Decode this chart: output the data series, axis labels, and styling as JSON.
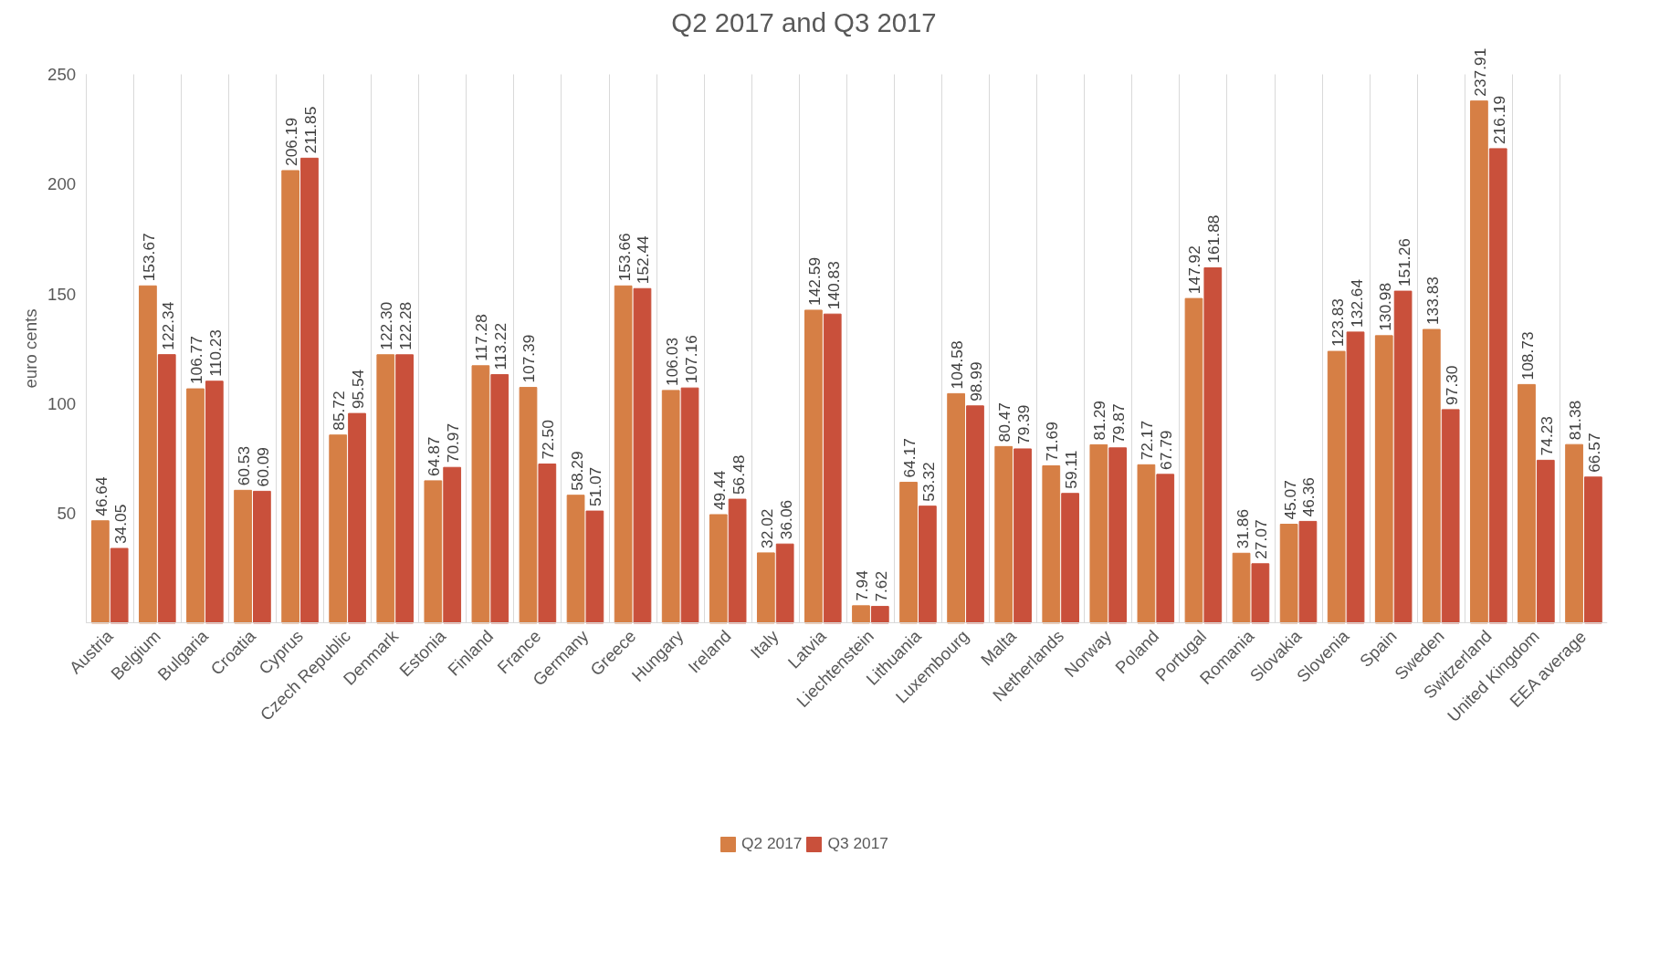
{
  "chart_data": {
    "type": "bar",
    "title": "Q2 2017 and Q3 2017",
    "ylabel": "euro cents",
    "categories": [
      "Austria",
      "Belgium",
      "Bulgaria",
      "Croatia",
      "Cyprus",
      "Czech Republic",
      "Denmark",
      "Estonia",
      "Finland",
      "France",
      "Germany",
      "Greece",
      "Hungary",
      "Ireland",
      "Italy",
      "Latvia",
      "Liechtenstein",
      "Lithuania",
      "Luxembourg",
      "Malta",
      "Netherlands",
      "Norway",
      "Poland",
      "Portugal",
      "Romania",
      "Slovakia",
      "Slovenia",
      "Spain",
      "Sweden",
      "Switzerland",
      "United Kingdom",
      "EEA average"
    ],
    "series": [
      {
        "name": "Q2 2017",
        "color": "#d67f45",
        "values": [
          46.64,
          153.67,
          106.77,
          60.53,
          206.19,
          85.72,
          122.3,
          64.87,
          117.28,
          107.39,
          58.29,
          153.66,
          106.03,
          49.44,
          32.02,
          142.59,
          7.94,
          64.17,
          104.58,
          80.47,
          71.69,
          81.29,
          72.17,
          147.92,
          31.86,
          45.07,
          123.83,
          130.98,
          133.83,
          237.91,
          108.73,
          81.38
        ],
        "value_labels": [
          "46.64",
          "153.67",
          "106.77",
          "60.53",
          "206.19",
          "85.72",
          "122.30",
          "64.87",
          "117.28",
          "107.39",
          "58.29",
          "153.66",
          "106.03",
          "49.44",
          "32.02",
          "142.59",
          "7.94",
          "64.17",
          "104.58",
          "80.47",
          "71.69",
          "81.29",
          "72.17",
          "147.92",
          "31.86",
          "45.07",
          "123.83",
          "130.98",
          "133.83",
          "237.91",
          "108.73",
          "81.38"
        ]
      },
      {
        "name": "Q3 2017",
        "color": "#c9503b",
        "values": [
          34.05,
          122.34,
          110.23,
          60.09,
          211.85,
          95.54,
          122.28,
          70.97,
          113.22,
          72.5,
          51.07,
          152.44,
          107.16,
          56.48,
          36.06,
          140.83,
          7.62,
          53.32,
          98.99,
          79.39,
          59.11,
          79.87,
          67.79,
          161.88,
          27.07,
          46.36,
          132.64,
          151.26,
          97.3,
          216.19,
          74.23,
          66.57
        ],
        "value_labels": [
          "34.05",
          "122.34",
          "110.23",
          "60.09",
          "211.85",
          "95.54",
          "122.28",
          "70.97",
          "113.22",
          "72.50",
          "51.07",
          "152.44",
          "107.16",
          "56.48",
          "36.06",
          "140.83",
          "7.62",
          "53.32",
          "98.99",
          "79.39",
          "59.11",
          "79.87",
          "67.79",
          "161.88",
          "27.07",
          "46.36",
          "132.64",
          "151.26",
          "97.30",
          "216.19",
          "74.23",
          "66.57"
        ]
      }
    ],
    "ylim": [
      0,
      250
    ],
    "yticks": [
      50,
      100,
      150,
      200,
      250
    ],
    "grid": "x",
    "legend": "bottom",
    "data_labels": true
  }
}
